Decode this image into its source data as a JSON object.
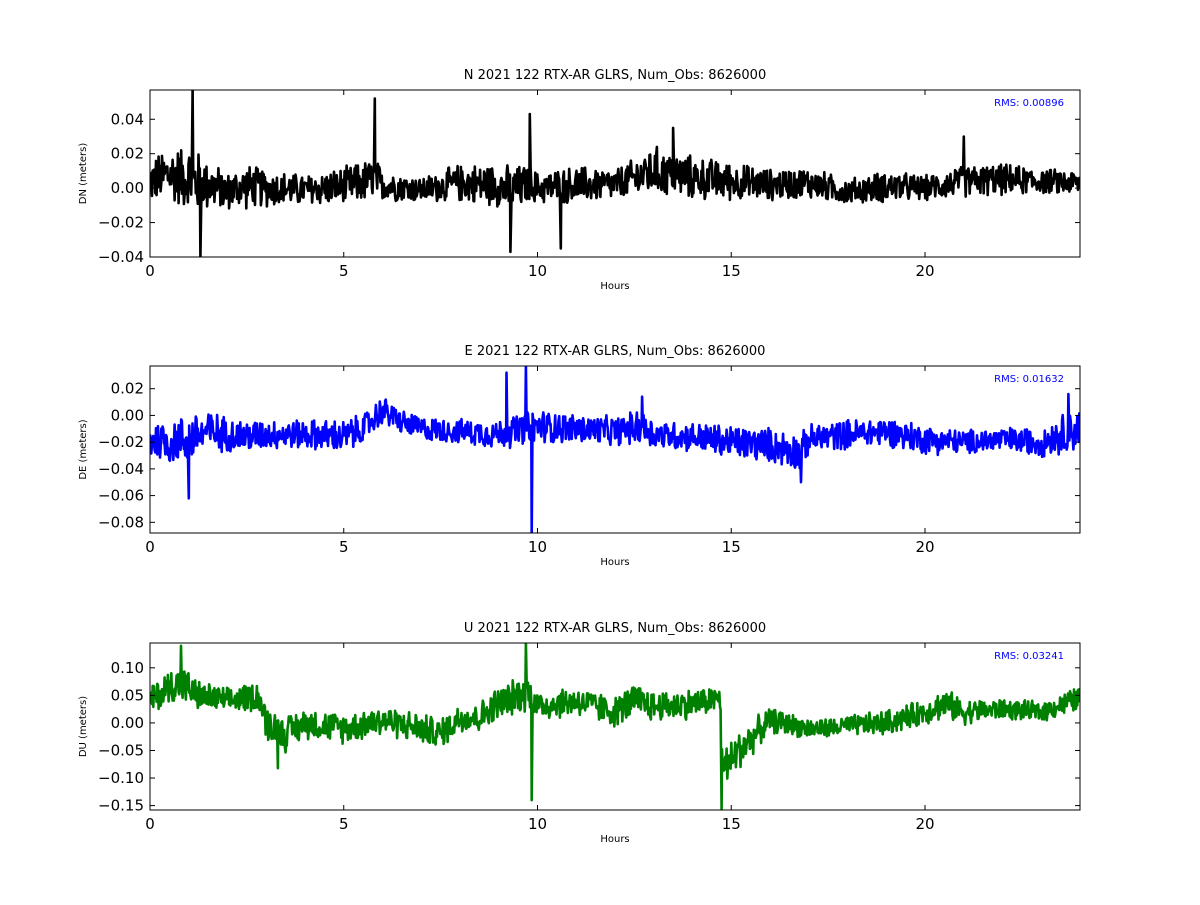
{
  "chart_data": [
    {
      "type": "line",
      "title": "N 2021 122 RTX-AR  GLRS, Num_Obs: 8626000",
      "xlabel": "Hours",
      "ylabel": "DN (meters)",
      "xlim": [
        0,
        24
      ],
      "ylim": [
        -0.04,
        0.057
      ],
      "xticks": [
        "0",
        "5",
        "10",
        "15",
        "20"
      ],
      "yticks": [
        "−0.04",
        "−0.02",
        "0.00",
        "0.02",
        "0.04"
      ],
      "yticks_values": [
        -0.04,
        -0.02,
        0.0,
        0.02,
        0.04
      ],
      "annotation": "RMS:  0.00896",
      "color": "#000000",
      "grid": false,
      "series": [
        {
          "x": [
            0,
            0.5,
            1,
            1.1,
            1.5,
            2,
            2.5,
            3,
            4,
            5,
            5.8,
            6,
            7,
            8,
            9,
            9.3,
            9.8,
            10,
            11,
            12,
            12.5,
            13,
            13.5,
            14,
            15,
            16,
            17,
            18,
            19,
            20,
            21,
            22,
            23,
            24
          ],
          "y": [
            0.004,
            0.008,
            0.006,
            0.004,
            0.002,
            -0.002,
            0.001,
            0.0,
            -0.001,
            0.001,
            0.005,
            0.002,
            -0.001,
            0.003,
            0.002,
            -0.002,
            0.003,
            0.0,
            0.002,
            0.002,
            0.006,
            0.01,
            0.008,
            0.006,
            0.004,
            0.002,
            0.003,
            -0.002,
            0.001,
            0.0,
            0.004,
            0.005,
            0.004,
            0.003
          ],
          "spread": [
            0.014,
            0.018,
            0.02,
            0.022,
            0.016,
            0.012,
            0.014,
            0.012,
            0.01,
            0.012,
            0.014,
            0.01,
            0.008,
            0.012,
            0.014,
            0.016,
            0.012,
            0.01,
            0.012,
            0.01,
            0.012,
            0.016,
            0.014,
            0.014,
            0.012,
            0.01,
            0.01,
            0.008,
            0.01,
            0.008,
            0.01,
            0.01,
            0.008,
            0.008
          ],
          "spikes": [
            [
              1.1,
              0.057
            ],
            [
              1.3,
              -0.04
            ],
            [
              5.8,
              0.052
            ],
            [
              9.3,
              -0.037
            ],
            [
              9.8,
              0.043
            ],
            [
              10.6,
              -0.035
            ],
            [
              13.5,
              0.035
            ],
            [
              21.0,
              0.03
            ]
          ]
        }
      ]
    },
    {
      "type": "line",
      "title": "E 2021 122 RTX-AR  GLRS, Num_Obs: 8626000",
      "xlabel": "Hours",
      "ylabel": "DE (meters)",
      "xlim": [
        0,
        24
      ],
      "ylim": [
        -0.088,
        0.037
      ],
      "xticks": [
        "0",
        "5",
        "10",
        "15",
        "20"
      ],
      "yticks": [
        "−0.08",
        "−0.06",
        "−0.04",
        "−0.02",
        "0.00",
        "0.02"
      ],
      "yticks_values": [
        -0.08,
        -0.06,
        -0.04,
        -0.02,
        0.0,
        0.02
      ],
      "annotation": "RMS:  0.01632",
      "color": "#0000ff",
      "grid": false,
      "series": [
        {
          "x": [
            0,
            0.5,
            1,
            1.5,
            2,
            2.5,
            3,
            4,
            5,
            5.5,
            6,
            6.5,
            7,
            8,
            9,
            9.7,
            10,
            11,
            12,
            12.7,
            13,
            14,
            15,
            16,
            16.8,
            17,
            18,
            19,
            20,
            21,
            22,
            23,
            23.5,
            24
          ],
          "y": [
            -0.018,
            -0.02,
            -0.017,
            -0.012,
            -0.014,
            -0.016,
            -0.014,
            -0.014,
            -0.016,
            -0.01,
            0.004,
            -0.005,
            -0.01,
            -0.012,
            -0.014,
            -0.01,
            -0.008,
            -0.01,
            -0.012,
            -0.008,
            -0.014,
            -0.016,
            -0.02,
            -0.022,
            -0.028,
            -0.018,
            -0.014,
            -0.012,
            -0.018,
            -0.02,
            -0.018,
            -0.02,
            -0.014,
            -0.01
          ],
          "spread": [
            0.016,
            0.018,
            0.02,
            0.018,
            0.014,
            0.014,
            0.012,
            0.012,
            0.014,
            0.012,
            0.012,
            0.01,
            0.01,
            0.01,
            0.012,
            0.014,
            0.014,
            0.012,
            0.012,
            0.014,
            0.012,
            0.012,
            0.014,
            0.014,
            0.016,
            0.012,
            0.012,
            0.012,
            0.012,
            0.01,
            0.01,
            0.012,
            0.016,
            0.018
          ],
          "spikes": [
            [
              1.0,
              -0.062
            ],
            [
              9.2,
              0.032
            ],
            [
              9.7,
              0.037
            ],
            [
              9.85,
              -0.088
            ],
            [
              12.7,
              0.014
            ],
            [
              16.8,
              -0.05
            ],
            [
              23.7,
              0.016
            ]
          ]
        }
      ]
    },
    {
      "type": "line",
      "title": "U 2021 122 RTX-AR  GLRS, Num_Obs: 8626000",
      "xlabel": "Hours",
      "ylabel": "DU (meters)",
      "xlim": [
        0,
        24
      ],
      "ylim": [
        -0.158,
        0.145
      ],
      "xticks": [
        "0",
        "5",
        "10",
        "15",
        "20"
      ],
      "yticks": [
        "−0.15",
        "−0.10",
        "−0.05",
        "0.00",
        "0.05",
        "0.10"
      ],
      "yticks_values": [
        -0.15,
        -0.1,
        -0.05,
        0.0,
        0.05,
        0.1
      ],
      "annotation": "RMS:  0.03241",
      "color": "#008000",
      "grid": false,
      "series": [
        {
          "x": [
            0,
            0.5,
            0.8,
            1.2,
            2,
            2.8,
            3.0,
            3.5,
            4,
            5,
            6,
            7,
            7.5,
            8,
            8.5,
            9,
            9.5,
            9.8,
            10,
            11,
            12,
            12.5,
            13,
            14,
            14.7,
            14.8,
            15.2,
            16,
            17,
            17.5,
            18,
            19,
            20,
            20.5,
            21,
            22,
            23,
            24
          ],
          "y": [
            0.04,
            0.065,
            0.075,
            0.05,
            0.04,
            0.05,
            0.0,
            -0.02,
            0.0,
            -0.01,
            0.005,
            -0.01,
            -0.02,
            0.01,
            0.01,
            0.035,
            0.05,
            0.055,
            0.03,
            0.04,
            0.02,
            0.04,
            0.03,
            0.035,
            0.045,
            -0.085,
            -0.05,
            0.005,
            -0.01,
            -0.01,
            -0.005,
            0.0,
            0.02,
            0.035,
            0.02,
            0.025,
            0.02,
            0.045
          ],
          "spread": [
            0.03,
            0.035,
            0.04,
            0.03,
            0.025,
            0.03,
            0.035,
            0.035,
            0.03,
            0.03,
            0.03,
            0.03,
            0.03,
            0.03,
            0.03,
            0.035,
            0.035,
            0.035,
            0.03,
            0.03,
            0.03,
            0.035,
            0.03,
            0.03,
            0.025,
            0.04,
            0.04,
            0.025,
            0.02,
            0.02,
            0.02,
            0.025,
            0.025,
            0.03,
            0.025,
            0.02,
            0.02,
            0.025
          ],
          "spikes": [
            [
              0.8,
              0.14
            ],
            [
              9.7,
              0.145
            ],
            [
              9.85,
              -0.14
            ],
            [
              14.75,
              -0.158
            ],
            [
              3.3,
              -0.082
            ]
          ]
        }
      ]
    }
  ]
}
